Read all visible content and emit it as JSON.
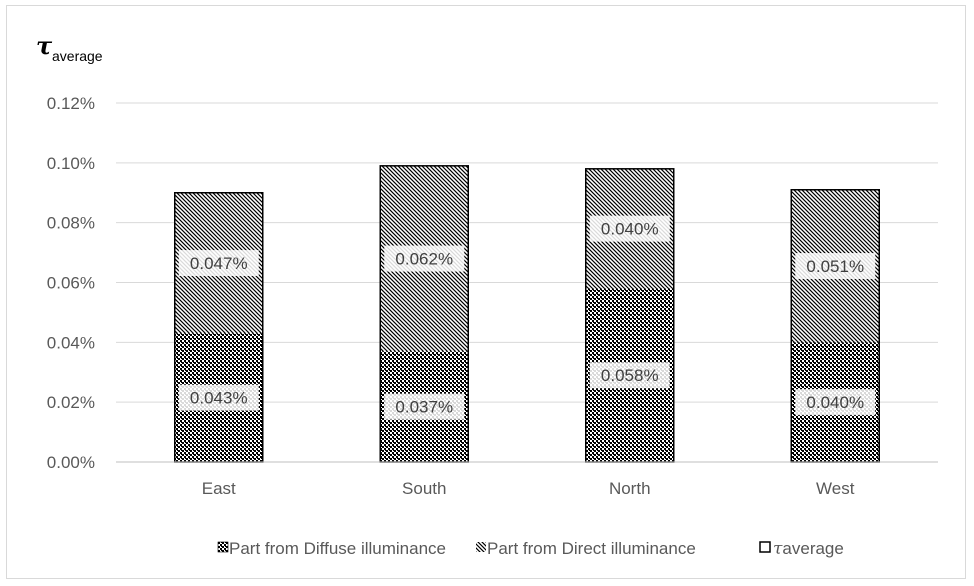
{
  "chart_data": {
    "type": "bar",
    "stacked": true,
    "title_symbol": "τ",
    "title_subscript": "average",
    "categories": [
      "East",
      "South",
      "North",
      "West"
    ],
    "series": [
      {
        "name": "Part from Diffuse illuminance",
        "values": [
          0.043,
          0.037,
          0.058,
          0.04
        ],
        "labels": [
          "0.043%",
          "0.037%",
          "0.058%",
          "0.040%"
        ],
        "pattern": "dots"
      },
      {
        "name": "Part from Direct illuminance",
        "values": [
          0.047,
          0.062,
          0.04,
          0.051
        ],
        "labels": [
          "0.047%",
          "0.062%",
          "0.040%",
          "0.051%"
        ],
        "pattern": "diagonal"
      }
    ],
    "total_series": {
      "name_symbol": "τ",
      "name_text": "average",
      "values": [
        0.09,
        0.099,
        0.098,
        0.091
      ]
    },
    "y_ticks": [
      "0.00%",
      "0.02%",
      "0.04%",
      "0.06%",
      "0.08%",
      "0.10%",
      "0.12%"
    ],
    "ylim": [
      0,
      0.12
    ],
    "unit": "%",
    "grid": true,
    "legend_position": "bottom",
    "colors": {
      "grid": "#d9d9d9",
      "axis": "#bfbfbf",
      "bar_outline": "#000000",
      "text": "#595959"
    }
  }
}
